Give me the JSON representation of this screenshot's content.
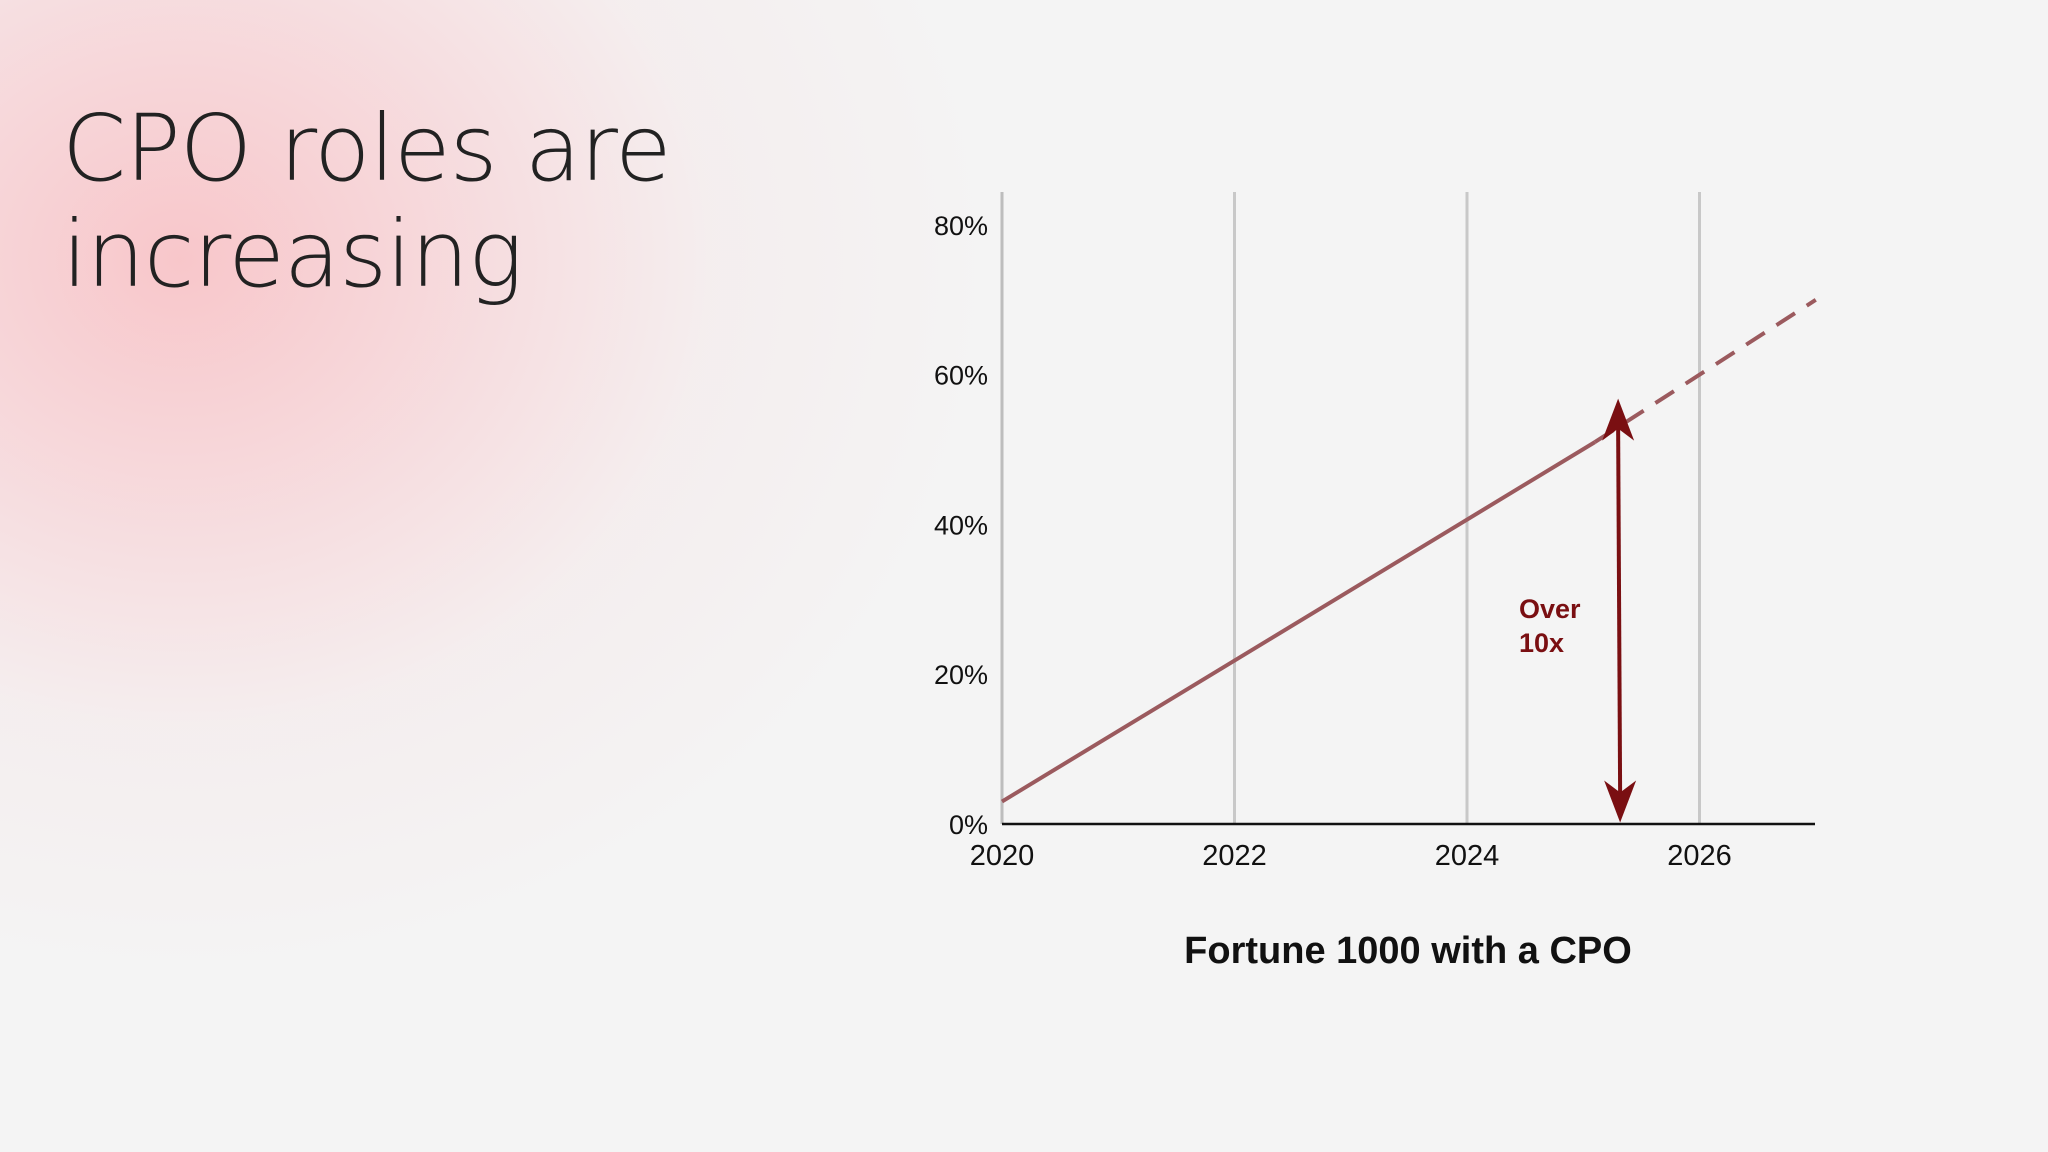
{
  "title_lines": [
    "CPO roles are",
    "increasing"
  ],
  "chart_data": {
    "type": "line",
    "title": "",
    "xlabel": "Fortune 1000 with a CPO",
    "ylabel": "",
    "xlim": [
      2020,
      2027
    ],
    "ylim": [
      0,
      80
    ],
    "x_ticks": [
      2020,
      2022,
      2024,
      2026
    ],
    "x_tick_labels": [
      "2020",
      "2022",
      "2024",
      "2026"
    ],
    "y_ticks": [
      0,
      20,
      40,
      60,
      80
    ],
    "y_tick_labels": [
      "0%",
      "20%",
      "40%",
      "60%",
      "80%"
    ],
    "grid": "vertical",
    "series": [
      {
        "style": "solid",
        "color": "#9b5a5e",
        "x": [
          2020,
          2025.1
        ],
        "y": [
          3,
          51
        ]
      },
      {
        "style": "dashed",
        "color": "#9b5a5e",
        "x": [
          2025.1,
          2027
        ],
        "y": [
          51,
          70
        ]
      }
    ],
    "annotation": {
      "lines": [
        "Over",
        "10x"
      ],
      "color": "#7a0f12",
      "arrow_x": 2025.3,
      "arrow_y": [
        5,
        52
      ]
    }
  }
}
